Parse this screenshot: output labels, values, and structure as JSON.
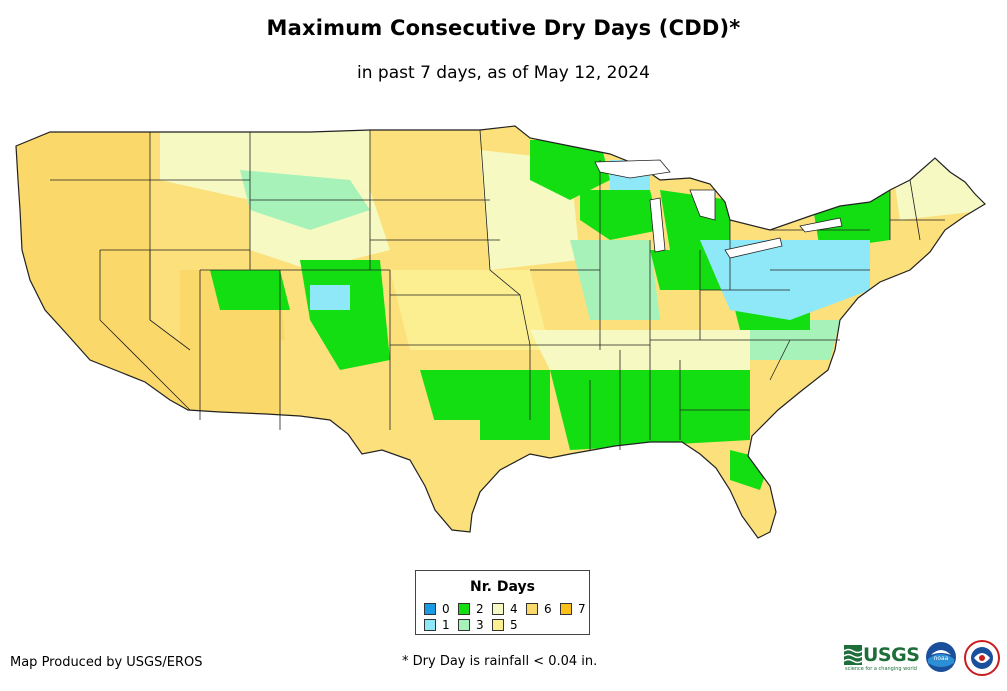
{
  "header": {
    "title": "Maximum Consecutive Dry Days (CDD)*",
    "subtitle": "in past 7 days, as of May 12, 2024"
  },
  "legend": {
    "title": "Nr. Days",
    "items": [
      {
        "label": "0",
        "color": "#1a9be6"
      },
      {
        "label": "1",
        "color": "#8fe8f8"
      },
      {
        "label": "2",
        "color": "#12de12"
      },
      {
        "label": "3",
        "color": "#a6f2b8"
      },
      {
        "label": "4",
        "color": "#f6f9c2"
      },
      {
        "label": "5",
        "color": "#fbef91"
      },
      {
        "label": "6",
        "color": "#fbd86a"
      },
      {
        "label": "7",
        "color": "#fbc11a"
      }
    ]
  },
  "footer": {
    "credit": "Map Produced by USGS/EROS",
    "note": "* Dry Day is rainfall < 0.04 in.",
    "usgs_logo": "USGS",
    "usgs_tagline": "science for a changing world",
    "noaa_logo": "noaa",
    "nws_logo": "nws-icon"
  }
}
